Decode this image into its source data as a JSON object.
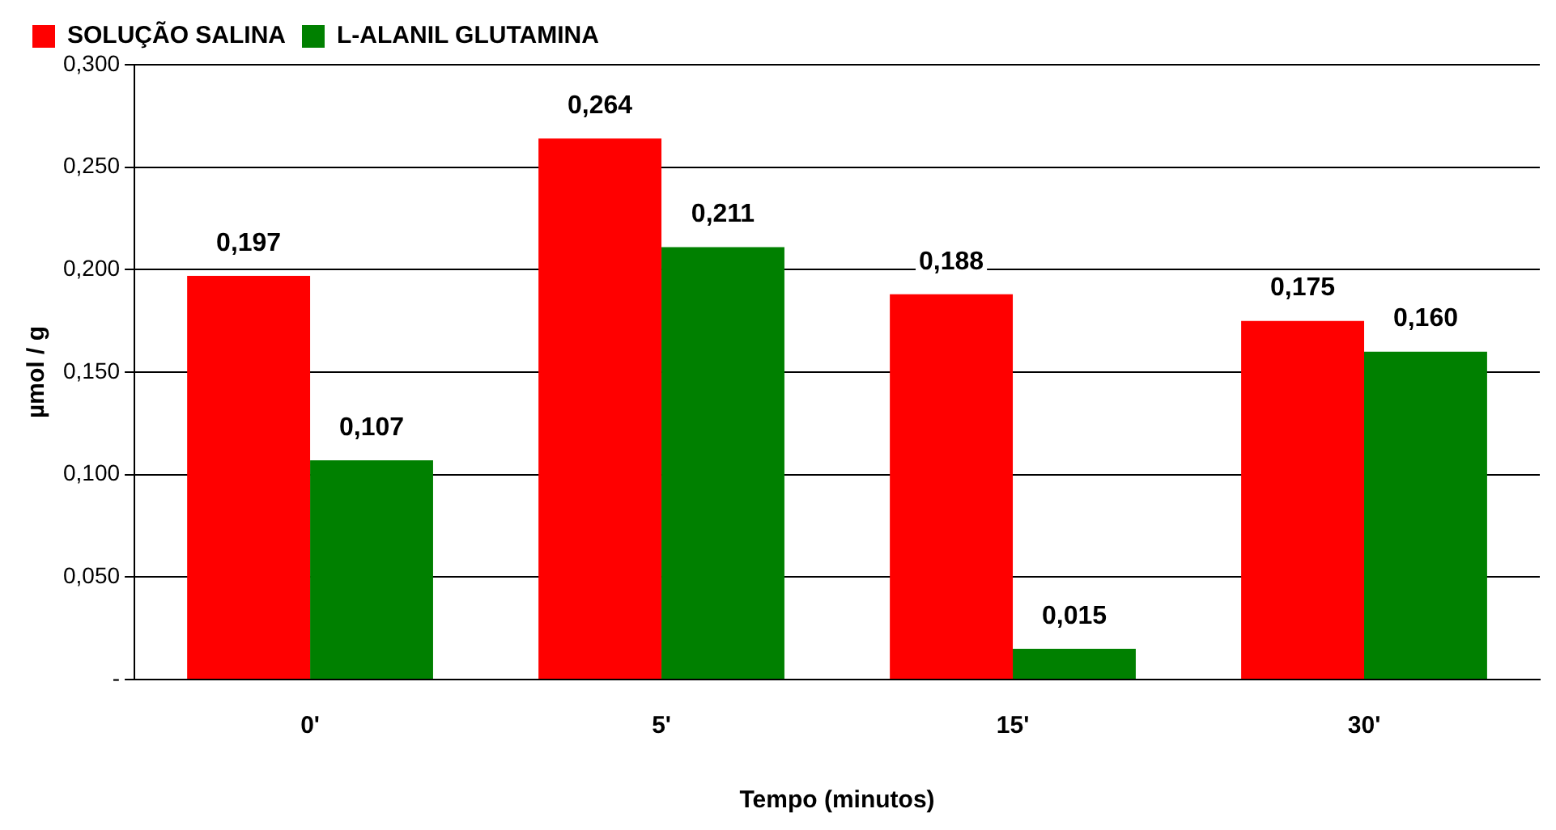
{
  "chart_data": {
    "type": "bar",
    "xlabel": "Tempo (minutos)",
    "ylabel": "µmol / g",
    "categories": [
      "0'",
      "5'",
      "15'",
      "30'"
    ],
    "series": [
      {
        "name": "SOLUÇÃO SALINA",
        "color": "#ff0000",
        "values": [
          0.197,
          0.264,
          0.188,
          0.175
        ],
        "value_labels": [
          "0,197",
          "0,264",
          "0,188",
          "0,175"
        ]
      },
      {
        "name": "L-ALANIL GLUTAMINA",
        "color": "#008000",
        "values": [
          0.107,
          0.211,
          0.015,
          0.16
        ],
        "value_labels": [
          "0,107",
          "0,211",
          "0,015",
          "0,160"
        ]
      }
    ],
    "ylim": [
      0,
      0.3
    ],
    "yticks": [
      {
        "value": 0,
        "label": "-"
      },
      {
        "value": 0.05,
        "label": "0,050"
      },
      {
        "value": 0.1,
        "label": "0,100"
      },
      {
        "value": 0.15,
        "label": "0,150"
      },
      {
        "value": 0.2,
        "label": "0,200"
      },
      {
        "value": 0.25,
        "label": "0,250"
      },
      {
        "value": 0.3,
        "label": "0,300"
      }
    ],
    "grid": "y",
    "legend": "top left"
  }
}
